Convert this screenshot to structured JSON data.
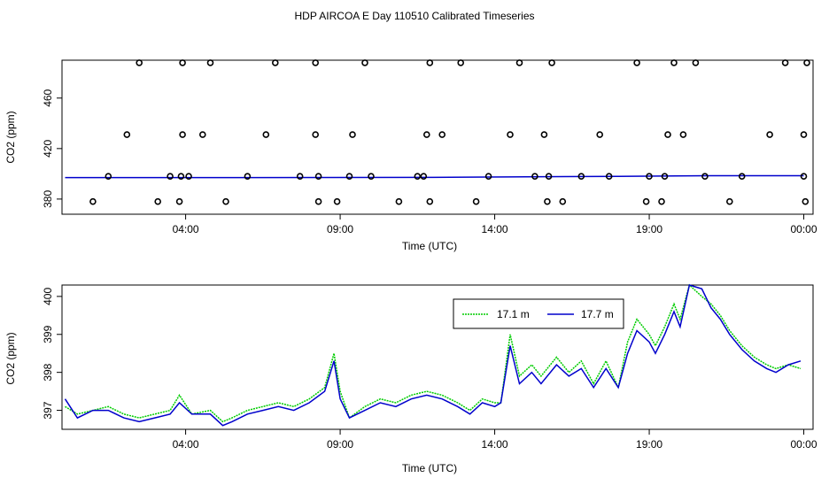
{
  "title": "HDP AIRCOA E  Day 110510  Calibrated Timeseries",
  "colors": {
    "green": "#00cc00",
    "blue": "#0000cc",
    "black": "#000000"
  },
  "chart_data": [
    {
      "type": "scatter",
      "xlabel": "Time (UTC)",
      "ylabel": "CO2 (ppm)",
      "xlim_hours": [
        0,
        24.3
      ],
      "ylim": [
        368,
        490
      ],
      "x_ticks": [
        {
          "value": 4,
          "label": "04:00"
        },
        {
          "value": 9,
          "label": "09:00"
        },
        {
          "value": 14,
          "label": "14:00"
        },
        {
          "value": 19,
          "label": "19:00"
        },
        {
          "value": 24,
          "label": "00:00"
        }
      ],
      "y_ticks": [
        {
          "value": 380,
          "label": "380"
        },
        {
          "value": 420,
          "label": "420"
        },
        {
          "value": 460,
          "label": "460"
        }
      ],
      "reference_series": {
        "name": "",
        "x": [
          0.1,
          6,
          12,
          18,
          21,
          24
        ],
        "y": [
          397,
          397,
          397.2,
          398,
          398.5,
          398.5
        ]
      },
      "points": {
        "x": [
          1.0,
          1.5,
          2.1,
          2.5,
          3.1,
          3.5,
          3.8,
          3.85,
          3.9,
          3.9,
          4.1,
          4.55,
          4.8,
          5.3,
          6.0,
          6.6,
          6.9,
          7.7,
          8.2,
          8.2,
          8.3,
          8.3,
          8.9,
          9.3,
          9.4,
          9.8,
          10.0,
          10.9,
          11.5,
          11.7,
          11.8,
          11.9,
          11.9,
          12.3,
          12.9,
          13.4,
          13.8,
          14.5,
          14.8,
          15.3,
          15.6,
          15.7,
          15.75,
          15.85,
          16.2,
          16.8,
          17.4,
          17.7,
          18.6,
          18.9,
          19.0,
          19.4,
          19.5,
          19.6,
          19.8,
          20.1,
          20.5,
          20.8,
          21.6,
          22.0,
          22.9,
          23.4,
          24.0,
          24.0,
          24.05,
          24.1
        ],
        "y": [
          378,
          398,
          431,
          488,
          378,
          398,
          378,
          398,
          431,
          488,
          398,
          431,
          488,
          378,
          398,
          431,
          488,
          398,
          431,
          488,
          378,
          398,
          378,
          398,
          431,
          488,
          398,
          378,
          398,
          398,
          431,
          488,
          378,
          431,
          488,
          378,
          398,
          431,
          488,
          398,
          431,
          378,
          398,
          488,
          378,
          398,
          431,
          398,
          488,
          378,
          398,
          378,
          398,
          431,
          488,
          431,
          488,
          398,
          378,
          398,
          431,
          488,
          398,
          431,
          378,
          488
        ]
      }
    },
    {
      "type": "line",
      "xlabel": "Time (UTC)",
      "ylabel": "CO2 (ppm)",
      "xlim_hours": [
        0,
        24.3
      ],
      "ylim": [
        396.5,
        400.3
      ],
      "x_ticks": [
        {
          "value": 4,
          "label": "04:00"
        },
        {
          "value": 9,
          "label": "09:00"
        },
        {
          "value": 14,
          "label": "14:00"
        },
        {
          "value": 19,
          "label": "19:00"
        },
        {
          "value": 24,
          "label": "00:00"
        }
      ],
      "y_ticks": [
        {
          "value": 397,
          "label": "397"
        },
        {
          "value": 398,
          "label": "398"
        },
        {
          "value": 399,
          "label": "399"
        },
        {
          "value": 400,
          "label": "400"
        }
      ],
      "legend": {
        "position": "top-right-inner"
      },
      "series": [
        {
          "name": "17.1 m",
          "color": "#00cc00",
          "dash": "dotted",
          "x": [
            0.1,
            0.5,
            1.0,
            1.5,
            2.0,
            2.5,
            3.0,
            3.5,
            3.8,
            4.2,
            4.8,
            5.2,
            5.5,
            6.0,
            6.5,
            7.0,
            7.5,
            8.0,
            8.5,
            8.8,
            9.0,
            9.3,
            9.8,
            10.3,
            10.8,
            11.3,
            11.8,
            12.3,
            12.8,
            13.2,
            13.6,
            14.0,
            14.2,
            14.5,
            14.8,
            15.2,
            15.5,
            16.0,
            16.4,
            16.8,
            17.2,
            17.6,
            18.0,
            18.3,
            18.6,
            19.0,
            19.2,
            19.5,
            19.8,
            20.0,
            20.3,
            20.7,
            21.0,
            21.3,
            21.6,
            22.0,
            22.4,
            22.8,
            23.1,
            23.5,
            23.9
          ],
          "y": [
            397.1,
            396.9,
            397.0,
            397.1,
            396.9,
            396.8,
            396.9,
            397.0,
            397.4,
            396.9,
            397.0,
            396.7,
            396.8,
            397.0,
            397.1,
            397.2,
            397.1,
            397.3,
            397.6,
            398.5,
            397.5,
            396.8,
            397.1,
            397.3,
            397.2,
            397.4,
            397.5,
            397.4,
            397.2,
            397.0,
            397.3,
            397.2,
            397.2,
            399.0,
            397.9,
            398.2,
            397.9,
            398.4,
            398.0,
            398.3,
            397.7,
            398.3,
            397.6,
            398.8,
            399.4,
            399.0,
            398.7,
            399.2,
            399.8,
            399.4,
            400.3,
            400.0,
            399.8,
            399.5,
            399.1,
            398.7,
            398.4,
            398.2,
            398.1,
            398.2,
            398.1
          ]
        },
        {
          "name": "17.7 m",
          "color": "#0000cc",
          "dash": "solid",
          "x": [
            0.1,
            0.5,
            1.0,
            1.5,
            2.0,
            2.5,
            3.0,
            3.5,
            3.8,
            4.2,
            4.8,
            5.2,
            5.5,
            6.0,
            6.5,
            7.0,
            7.5,
            8.0,
            8.5,
            8.8,
            9.0,
            9.3,
            9.8,
            10.3,
            10.8,
            11.3,
            11.8,
            12.3,
            12.8,
            13.2,
            13.6,
            14.0,
            14.2,
            14.5,
            14.8,
            15.2,
            15.5,
            16.0,
            16.4,
            16.8,
            17.2,
            17.6,
            18.0,
            18.3,
            18.6,
            19.0,
            19.2,
            19.5,
            19.8,
            20.0,
            20.3,
            20.7,
            21.0,
            21.3,
            21.6,
            22.0,
            22.4,
            22.8,
            23.1,
            23.5,
            23.9
          ],
          "y": [
            397.3,
            396.8,
            397.0,
            397.0,
            396.8,
            396.7,
            396.8,
            396.9,
            397.2,
            396.9,
            396.9,
            396.6,
            396.7,
            396.9,
            397.0,
            397.1,
            397.0,
            397.2,
            397.5,
            398.3,
            397.3,
            396.8,
            397.0,
            397.2,
            397.1,
            397.3,
            397.4,
            397.3,
            397.1,
            396.9,
            397.2,
            397.1,
            397.2,
            398.7,
            397.7,
            398.0,
            397.7,
            398.2,
            397.9,
            398.1,
            397.6,
            398.1,
            397.6,
            398.5,
            399.1,
            398.8,
            398.5,
            399.0,
            399.6,
            399.2,
            400.3,
            400.2,
            399.7,
            399.4,
            399.0,
            398.6,
            398.3,
            398.1,
            398.0,
            398.2,
            398.3
          ]
        }
      ]
    }
  ]
}
